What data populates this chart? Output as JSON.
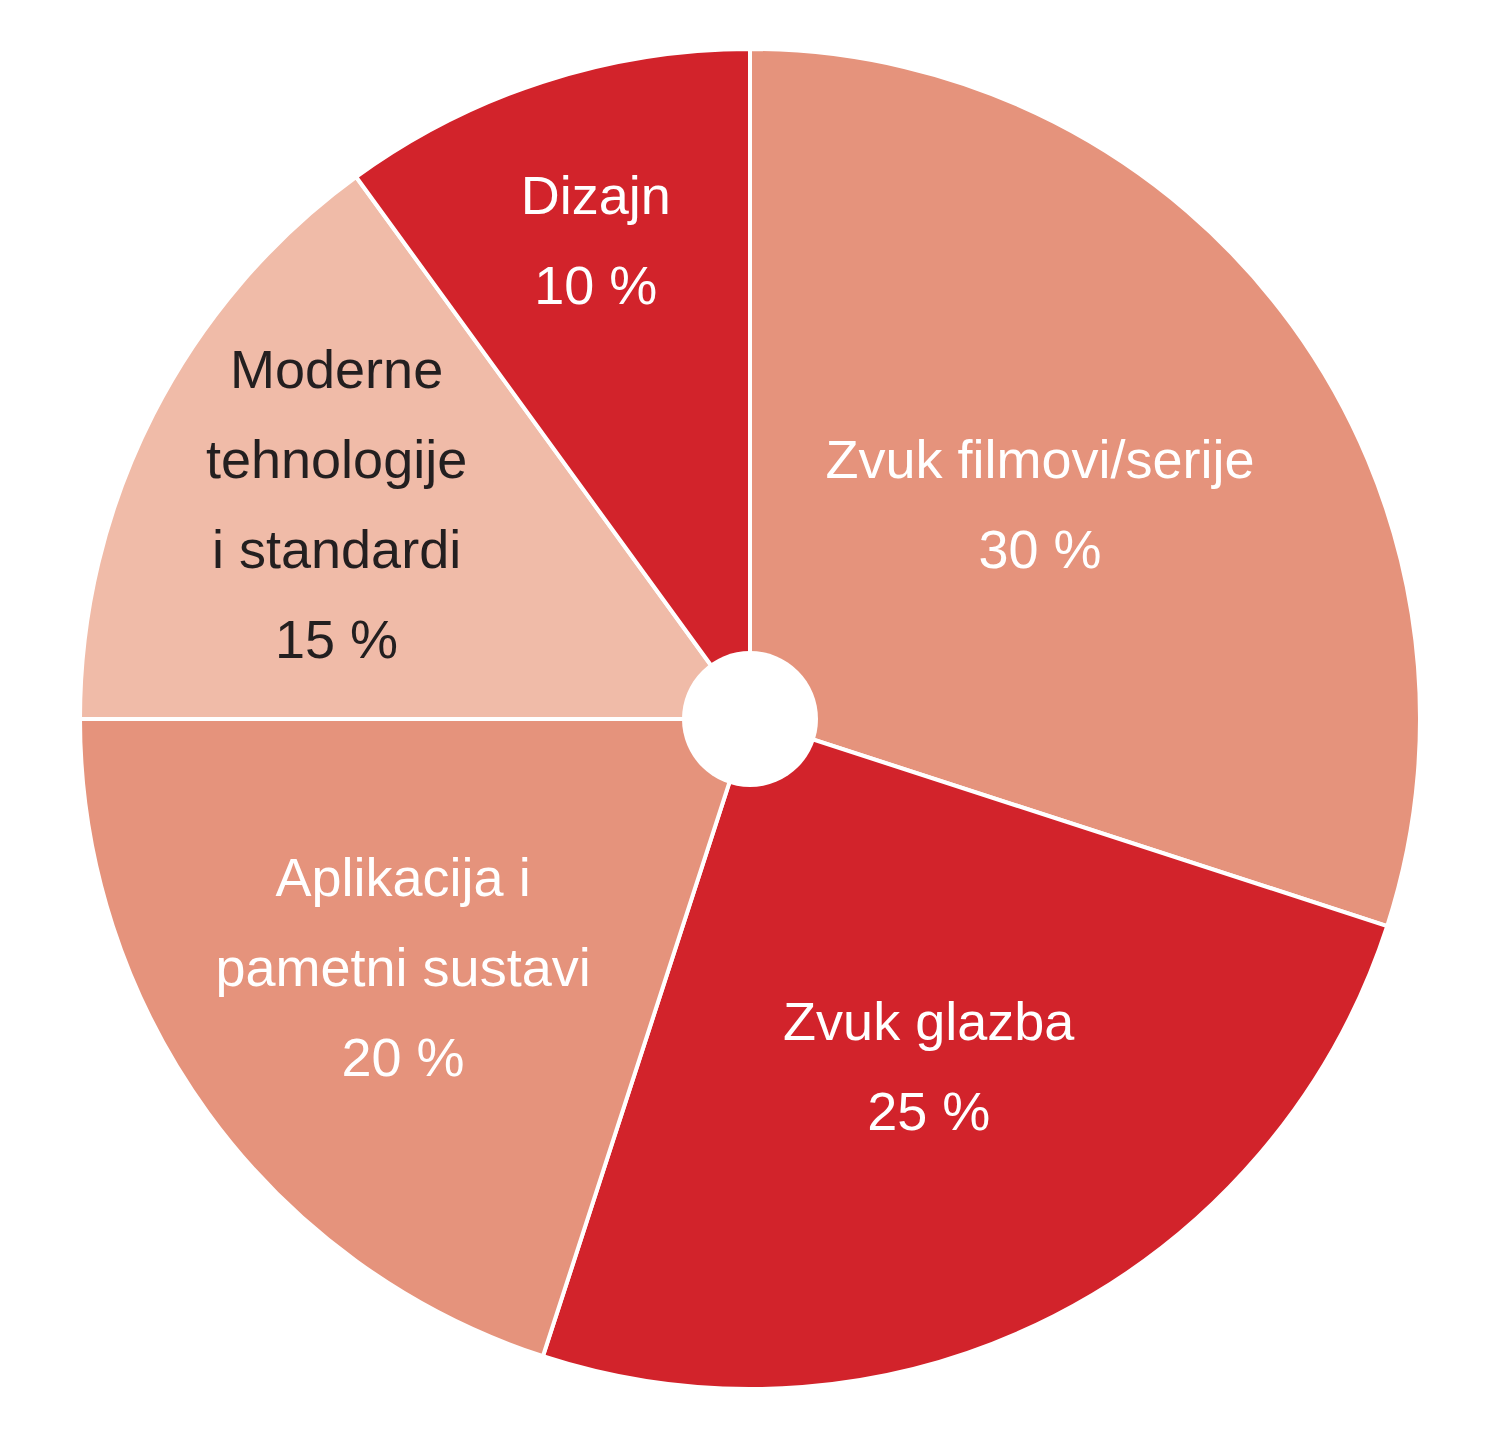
{
  "chart_data": {
    "type": "pie",
    "categories": [
      "Zvuk filmovi/serije",
      "Zvuk glazba",
      "Aplikacija i\npametni sustavi",
      "Moderne\ntehnologije\ni standardi",
      "Dizajn"
    ],
    "values": [
      30,
      25,
      20,
      15,
      10
    ],
    "colors": [
      "#e5937c",
      "#d2232b",
      "#e5937c",
      "#f0bba8",
      "#d2232b"
    ],
    "value_labels": [
      "30 %",
      "25 %",
      "20 %",
      "15 %",
      "10 %"
    ]
  }
}
